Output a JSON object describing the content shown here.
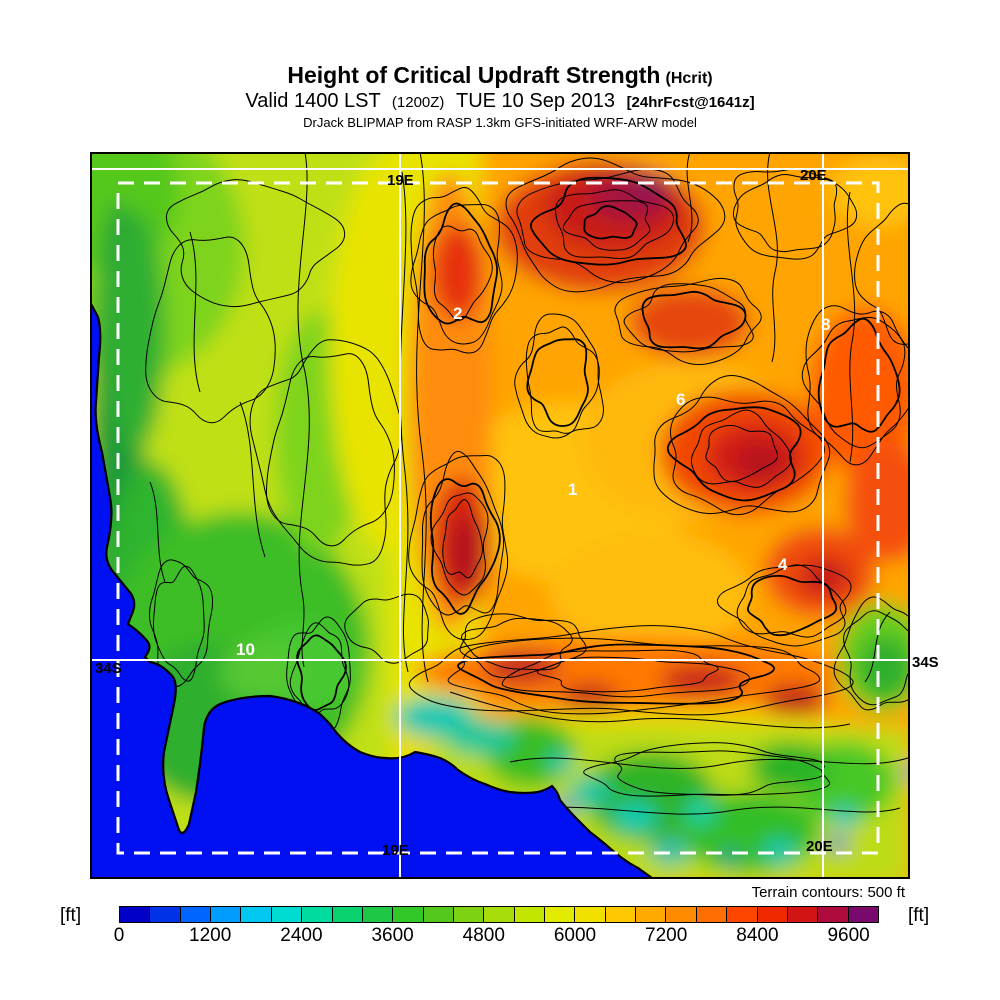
{
  "header": {
    "title": "Height of Critical Updraft Strength",
    "title_paren": "(Hcrit)",
    "valid_line_prefix": "Valid 1400 LST",
    "valid_time_zulu": "(1200Z)",
    "valid_date": "TUE 10 Sep 2013",
    "forecast_tag": "[24hrFcst@1641z]",
    "model_line": "DrJack BLIPMAP from RASP 1.3km GFS-initiated WRF-ARW model"
  },
  "map": {
    "grid_labels": {
      "lon_19e_top": "19E",
      "lon_20e_top": "20E",
      "lon_19e_bottom": "19E",
      "lon_20e_bottom": "20E",
      "lat_34s_left": "34S",
      "lat_34s_right": "34S"
    },
    "site_markers": [
      {
        "label": "2"
      },
      {
        "label": "8"
      },
      {
        "label": "6"
      },
      {
        "label": "1"
      },
      {
        "label": "4"
      },
      {
        "label": "10"
      }
    ],
    "ocean_color": "#0010F0",
    "contour_note": "Terrain contours: 500 ft"
  },
  "colorbar": {
    "unit_left": "[ft]",
    "unit_right": "[ft]",
    "tick_labels": [
      "0",
      "1200",
      "2400",
      "3600",
      "4800",
      "6000",
      "7200",
      "8400",
      "9600"
    ],
    "tick_interval_ft": 1200,
    "segment_ft": 400,
    "segment_colors": [
      "#0000C8",
      "#0032E8",
      "#0064FF",
      "#009CFF",
      "#00C8F0",
      "#00DCD2",
      "#00DCA0",
      "#0AD26E",
      "#1EC846",
      "#32C828",
      "#55C81E",
      "#7DD214",
      "#A5DC0A",
      "#C3E600",
      "#E1EB00",
      "#F0E100",
      "#FFC800",
      "#FFAA00",
      "#FF8C00",
      "#FF6E00",
      "#FF4600",
      "#F02800",
      "#D21414",
      "#AF0A3C",
      "#780A6E"
    ]
  }
}
